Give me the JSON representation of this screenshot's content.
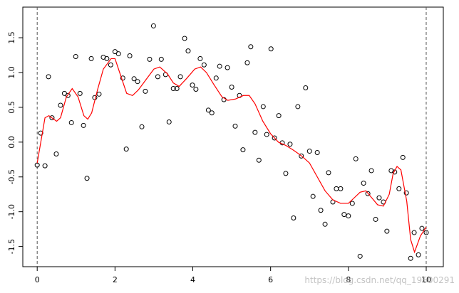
{
  "chart_data": {
    "type": "scatter",
    "xlim": [
      -0.37,
      10.44
    ],
    "ylim": [
      -1.79,
      1.94
    ],
    "xticks": [
      0,
      2,
      4,
      6,
      8,
      10
    ],
    "yticks": [
      -1.5,
      {
        "value": -1,
        "label": "-1.0"
      },
      -0.5,
      {
        "value": 0,
        "label": "0.0"
      },
      0.5,
      {
        "value": 1,
        "label": "1.0"
      },
      1.5
    ],
    "reference_lines_x": [
      0,
      10
    ],
    "watermark": "https://blog.csdn.net/qq_19600291",
    "series": [
      {
        "type": "scatter",
        "color": "#000000",
        "x": [
          0,
          0.09,
          0.2,
          0.29,
          0.38,
          0.49,
          0.6,
          0.7,
          0.79,
          0.88,
          0.99,
          1.1,
          1.19,
          1.28,
          1.39,
          1.48,
          1.59,
          1.7,
          1.79,
          1.89,
          2.0,
          2.09,
          2.2,
          2.29,
          2.38,
          2.49,
          2.58,
          2.69,
          2.78,
          2.89,
          2.99,
          3.1,
          3.19,
          3.3,
          3.39,
          3.5,
          3.59,
          3.68,
          3.79,
          3.88,
          3.99,
          4.08,
          4.19,
          4.29,
          4.4,
          4.49,
          4.6,
          4.69,
          4.8,
          4.89,
          5.0,
          5.09,
          5.2,
          5.29,
          5.4,
          5.49,
          5.6,
          5.7,
          5.81,
          5.9,
          6.01,
          6.1,
          6.21,
          6.3,
          6.39,
          6.5,
          6.59,
          6.7,
          6.79,
          6.9,
          7.0,
          7.09,
          7.2,
          7.29,
          7.4,
          7.49,
          7.6,
          7.69,
          7.8,
          7.89,
          8.0,
          8.1,
          8.19,
          8.3,
          8.39,
          8.5,
          8.59,
          8.7,
          8.79,
          8.9,
          8.99,
          9.1,
          9.19,
          9.3,
          9.4,
          9.49,
          9.6,
          9.69,
          9.8,
          9.89,
          10.0
        ],
        "values": [
          -0.33,
          0.13,
          -0.34,
          0.94,
          0.35,
          -0.17,
          0.53,
          0.7,
          0.67,
          0.28,
          1.23,
          0.7,
          0.24,
          -0.52,
          1.2,
          0.64,
          0.69,
          1.22,
          1.2,
          1.11,
          1.3,
          1.27,
          0.92,
          -0.1,
          1.24,
          0.91,
          0.87,
          0.22,
          0.73,
          1.19,
          1.67,
          0.94,
          1.19,
          0.97,
          0.29,
          0.77,
          0.77,
          0.94,
          1.49,
          1.31,
          0.82,
          0.76,
          1.2,
          1.11,
          0.46,
          0.42,
          0.92,
          1.09,
          0.61,
          1.07,
          0.79,
          0.23,
          0.67,
          -0.11,
          1.14,
          1.37,
          0.14,
          -0.26,
          0.51,
          0.11,
          1.34,
          0.06,
          0.38,
          -0.01,
          -0.45,
          -0.03,
          -1.09,
          0.51,
          -0.2,
          0.78,
          -0.13,
          -0.78,
          -0.15,
          -0.98,
          -1.18,
          -0.44,
          -0.86,
          -0.67,
          -0.67,
          -1.04,
          -1.06,
          -0.88,
          -0.24,
          -1.64,
          -0.59,
          -0.74,
          -0.41,
          -1.11,
          -0.8,
          -0.86,
          -1.28,
          -0.41,
          -0.43,
          -0.67,
          -0.22,
          -0.73,
          -1.67,
          -1.3,
          -1.62,
          -1.24,
          -1.3
        ]
      },
      {
        "type": "line",
        "color": "#ff0000",
        "x": [
          0,
          0.2,
          0.3,
          0.5,
          0.6,
          0.75,
          0.9,
          1.05,
          1.2,
          1.3,
          1.4,
          1.55,
          1.7,
          1.9,
          2.0,
          2.15,
          2.3,
          2.45,
          2.6,
          2.8,
          3.0,
          3.15,
          3.35,
          3.5,
          3.65,
          3.85,
          4.05,
          4.2,
          4.35,
          4.55,
          4.75,
          4.9,
          5.1,
          5.3,
          5.45,
          5.6,
          5.8,
          6.0,
          6.2,
          6.4,
          6.6,
          6.8,
          7.0,
          7.2,
          7.4,
          7.6,
          7.8,
          8.0,
          8.15,
          8.3,
          8.45,
          8.6,
          8.75,
          8.9,
          9.05,
          9.15,
          9.25,
          9.35,
          9.5,
          9.6,
          9.7,
          9.85,
          10.0
        ],
        "values": [
          -0.3,
          0.35,
          0.38,
          0.3,
          0.35,
          0.65,
          0.77,
          0.65,
          0.38,
          0.33,
          0.42,
          0.75,
          1.05,
          1.2,
          1.2,
          0.95,
          0.7,
          0.67,
          0.75,
          0.9,
          1.05,
          1.08,
          0.98,
          0.85,
          0.8,
          0.92,
          1.05,
          1.08,
          1.0,
          0.82,
          0.65,
          0.6,
          0.62,
          0.67,
          0.67,
          0.55,
          0.3,
          0.12,
          0.0,
          -0.05,
          -0.12,
          -0.2,
          -0.3,
          -0.5,
          -0.7,
          -0.83,
          -0.88,
          -0.88,
          -0.8,
          -0.72,
          -0.7,
          -0.8,
          -0.9,
          -0.92,
          -0.75,
          -0.45,
          -0.35,
          -0.4,
          -0.85,
          -1.4,
          -1.58,
          -1.35,
          -1.22
        ]
      }
    ]
  }
}
